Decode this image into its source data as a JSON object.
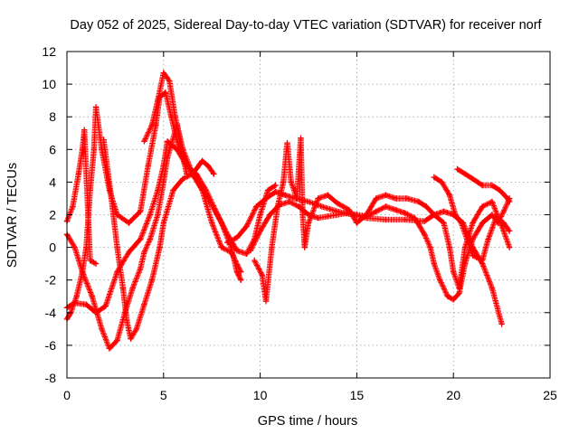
{
  "chart_data": {
    "type": "scatter",
    "title": "Day 052 of 2025, Sidereal Day-to-day VTEC variation (SDTVAR) for receiver norf",
    "xlabel": "GPS time / hours",
    "ylabel": "SDTVAR / TECUs",
    "xlim": [
      0,
      25
    ],
    "ylim": [
      -8,
      12
    ],
    "xticks": [
      0,
      5,
      10,
      15,
      20,
      25
    ],
    "yticks": [
      -8,
      -6,
      -4,
      -2,
      0,
      2,
      4,
      6,
      8,
      10,
      12
    ],
    "xtick_labels": [
      "0",
      "5",
      "10",
      "15",
      "20",
      "25"
    ],
    "ytick_labels": [
      "-8",
      "-6",
      "-4",
      "-2",
      "0",
      "2",
      "4",
      "6",
      "8",
      "10",
      "12"
    ],
    "grid": true,
    "marker": "+",
    "color": "#ff0000",
    "series": [
      {
        "name": "track-1",
        "points": [
          [
            0.0,
            1.6
          ],
          [
            0.3,
            2.5
          ],
          [
            0.6,
            4.5
          ],
          [
            0.8,
            6.0
          ],
          [
            0.9,
            7.2
          ],
          [
            1.2,
            -0.8
          ],
          [
            1.5,
            -1.0
          ]
        ]
      },
      {
        "name": "track-2",
        "points": [
          [
            0.0,
            -4.4
          ],
          [
            0.2,
            -4.0
          ],
          [
            0.5,
            -3.0
          ],
          [
            0.8,
            -1.5
          ],
          [
            1.0,
            0.0
          ],
          [
            1.2,
            3.5
          ],
          [
            1.4,
            6.0
          ],
          [
            1.5,
            8.6
          ],
          [
            1.8,
            6.0
          ],
          [
            2.2,
            3.5
          ],
          [
            2.6,
            2.0
          ],
          [
            3.2,
            1.5
          ],
          [
            3.8,
            2.2
          ],
          [
            4.2,
            5.0
          ],
          [
            4.6,
            7.5
          ],
          [
            4.8,
            9.2
          ],
          [
            5.1,
            9.5
          ],
          [
            5.4,
            8.0
          ],
          [
            5.8,
            6.0
          ],
          [
            6.5,
            4.5
          ],
          [
            7.3,
            3.0
          ],
          [
            8.0,
            1.5
          ],
          [
            8.5,
            0.0
          ],
          [
            8.8,
            -1.5
          ],
          [
            9.0,
            -2.0
          ]
        ]
      },
      {
        "name": "track-3",
        "points": [
          [
            0.0,
            -3.7
          ],
          [
            0.4,
            -3.4
          ],
          [
            1.0,
            -3.5
          ],
          [
            1.5,
            -4.0
          ],
          [
            2.0,
            -3.6
          ],
          [
            2.6,
            -1.5
          ],
          [
            3.2,
            -0.3
          ],
          [
            3.8,
            0.5
          ],
          [
            4.3,
            2.0
          ],
          [
            4.7,
            3.5
          ],
          [
            5.0,
            5.0
          ],
          [
            5.2,
            6.5
          ],
          [
            5.7,
            6.0
          ],
          [
            6.2,
            5.0
          ],
          [
            6.7,
            4.5
          ],
          [
            7.2,
            3.5
          ],
          [
            7.8,
            2.0
          ],
          [
            8.3,
            0.8
          ],
          [
            8.8,
            -0.2
          ],
          [
            9.3,
            -0.4
          ],
          [
            9.7,
            0.5
          ],
          [
            10.0,
            2.0
          ],
          [
            10.4,
            3.5
          ],
          [
            10.8,
            3.8
          ]
        ]
      },
      {
        "name": "track-4",
        "points": [
          [
            0.0,
            0.8
          ],
          [
            0.4,
            0.0
          ],
          [
            0.8,
            -1.5
          ],
          [
            1.3,
            -3.0
          ],
          [
            1.8,
            -5.0
          ],
          [
            2.2,
            -6.2
          ],
          [
            2.6,
            -5.7
          ],
          [
            3.0,
            -4.0
          ],
          [
            3.4,
            -2.5
          ],
          [
            3.8,
            -1.3
          ],
          [
            4.0,
            -0.3
          ],
          [
            4.3,
            0.5
          ],
          [
            4.7,
            2.0
          ],
          [
            5.0,
            4.0
          ],
          [
            5.2,
            5.5
          ],
          [
            5.7,
            7.5
          ],
          [
            5.9,
            6.0
          ],
          [
            6.2,
            4.5
          ]
        ]
      },
      {
        "name": "track-5",
        "points": [
          [
            1.9,
            6.6
          ],
          [
            2.3,
            3.0
          ],
          [
            2.6,
            0.0
          ],
          [
            2.9,
            -2.5
          ],
          [
            3.1,
            -4.5
          ],
          [
            3.3,
            -5.6
          ],
          [
            3.6,
            -5.0
          ],
          [
            4.0,
            -3.5
          ],
          [
            4.4,
            -2.0
          ],
          [
            4.8,
            0.0
          ],
          [
            5.0,
            1.5
          ],
          [
            5.5,
            3.5
          ],
          [
            6.0,
            4.2
          ],
          [
            6.5,
            4.5
          ],
          [
            7.0,
            5.3
          ],
          [
            7.3,
            5.0
          ],
          [
            7.6,
            4.5
          ]
        ]
      },
      {
        "name": "track-6",
        "points": [
          [
            4.0,
            6.5
          ],
          [
            4.4,
            7.5
          ],
          [
            4.7,
            9.0
          ],
          [
            5.0,
            10.7
          ],
          [
            5.3,
            10.2
          ],
          [
            5.6,
            8.0
          ],
          [
            6.0,
            6.0
          ],
          [
            6.5,
            4.5
          ],
          [
            7.0,
            3.5
          ],
          [
            7.5,
            1.5
          ],
          [
            8.0,
            0.0
          ],
          [
            8.5,
            -0.3
          ],
          [
            9.0,
            -1.5
          ]
        ]
      },
      {
        "name": "track-7",
        "points": [
          [
            8.3,
            0.3
          ],
          [
            8.8,
            0.6
          ],
          [
            9.3,
            1.3
          ],
          [
            9.8,
            2.5
          ],
          [
            10.3,
            3.0
          ],
          [
            10.8,
            3.4
          ],
          [
            11.3,
            3.2
          ],
          [
            11.8,
            3.0
          ],
          [
            12.5,
            2.8
          ],
          [
            13.2,
            2.5
          ],
          [
            14.0,
            2.2
          ],
          [
            14.8,
            2.0
          ],
          [
            15.5,
            1.8
          ],
          [
            16.5,
            1.7
          ],
          [
            17.5,
            1.7
          ],
          [
            18.5,
            1.6
          ],
          [
            19.0,
            2.0
          ],
          [
            19.5,
            2.2
          ],
          [
            20.0,
            2.0
          ],
          [
            20.5,
            1.5
          ],
          [
            21.0,
            0.0
          ],
          [
            21.5,
            -1.0
          ],
          [
            22.0,
            -2.5
          ],
          [
            22.5,
            -4.7
          ]
        ]
      },
      {
        "name": "track-8",
        "points": [
          [
            9.7,
            -0.8
          ],
          [
            10.1,
            -1.7
          ],
          [
            10.3,
            -3.3
          ],
          [
            10.6,
            0.0
          ],
          [
            10.9,
            2.5
          ],
          [
            11.2,
            4.0
          ],
          [
            11.4,
            6.4
          ],
          [
            11.6,
            4.0
          ],
          [
            11.9,
            3.0
          ],
          [
            12.1,
            6.7
          ],
          [
            12.2,
            2.0
          ],
          [
            12.3,
            0.0
          ],
          [
            12.5,
            1.5
          ],
          [
            13.0,
            3.0
          ],
          [
            13.5,
            3.2
          ],
          [
            14.0,
            2.7
          ],
          [
            14.6,
            2.3
          ],
          [
            15.0,
            1.5
          ],
          [
            15.5,
            2.0
          ],
          [
            16.0,
            3.0
          ],
          [
            16.5,
            3.2
          ],
          [
            17.0,
            3.0
          ],
          [
            17.6,
            3.0
          ],
          [
            18.2,
            2.8
          ],
          [
            18.6,
            2.5
          ],
          [
            19.0,
            2.0
          ],
          [
            19.5,
            1.5
          ],
          [
            19.8,
            0.0
          ],
          [
            20.0,
            -1.5
          ],
          [
            20.3,
            -2.5
          ],
          [
            20.6,
            0.0
          ],
          [
            21.0,
            1.5
          ],
          [
            21.5,
            2.5
          ],
          [
            22.0,
            2.8
          ],
          [
            22.6,
            1.0
          ],
          [
            22.9,
            0.0
          ]
        ]
      },
      {
        "name": "track-9",
        "points": [
          [
            9.5,
            -0.2
          ],
          [
            10.0,
            1.0
          ],
          [
            10.5,
            2.0
          ],
          [
            11.0,
            2.6
          ],
          [
            11.5,
            2.8
          ],
          [
            12.0,
            2.5
          ],
          [
            12.5,
            2.0
          ],
          [
            13.0,
            1.8
          ],
          [
            13.5,
            1.9
          ],
          [
            14.0,
            2.0
          ],
          [
            14.5,
            2.1
          ],
          [
            15.0,
            2.0
          ],
          [
            15.5,
            1.9
          ],
          [
            16.0,
            2.2
          ],
          [
            16.5,
            2.5
          ],
          [
            17.0,
            2.3
          ],
          [
            17.5,
            2.1
          ],
          [
            18.0,
            1.8
          ],
          [
            18.5,
            0.8
          ],
          [
            18.8,
            0.0
          ],
          [
            19.0,
            -1.0
          ],
          [
            19.3,
            -2.0
          ],
          [
            19.7,
            -3.0
          ],
          [
            20.0,
            -3.2
          ],
          [
            20.3,
            -2.8
          ],
          [
            20.6,
            -1.0
          ],
          [
            21.0,
            0.5
          ],
          [
            21.5,
            1.5
          ],
          [
            22.0,
            2.0
          ],
          [
            22.3,
            1.5
          ],
          [
            22.6,
            2.2
          ],
          [
            22.9,
            3.0
          ]
        ]
      },
      {
        "name": "track-10",
        "points": [
          [
            19.0,
            4.3
          ],
          [
            19.4,
            4.0
          ],
          [
            19.8,
            3.2
          ],
          [
            20.1,
            2.0
          ],
          [
            20.4,
            1.5
          ],
          [
            20.7,
            0.5
          ],
          [
            21.0,
            -0.5
          ],
          [
            21.5,
            -0.8
          ],
          [
            21.8,
            0.5
          ],
          [
            22.2,
            1.8
          ],
          [
            22.6,
            1.5
          ],
          [
            22.9,
            1.0
          ]
        ]
      },
      {
        "name": "track-11",
        "points": [
          [
            20.2,
            4.8
          ],
          [
            20.6,
            4.5
          ],
          [
            21.0,
            4.2
          ],
          [
            21.5,
            3.8
          ],
          [
            22.0,
            3.8
          ],
          [
            22.4,
            3.5
          ],
          [
            22.8,
            3.0
          ],
          [
            22.9,
            2.8
          ]
        ]
      }
    ]
  }
}
